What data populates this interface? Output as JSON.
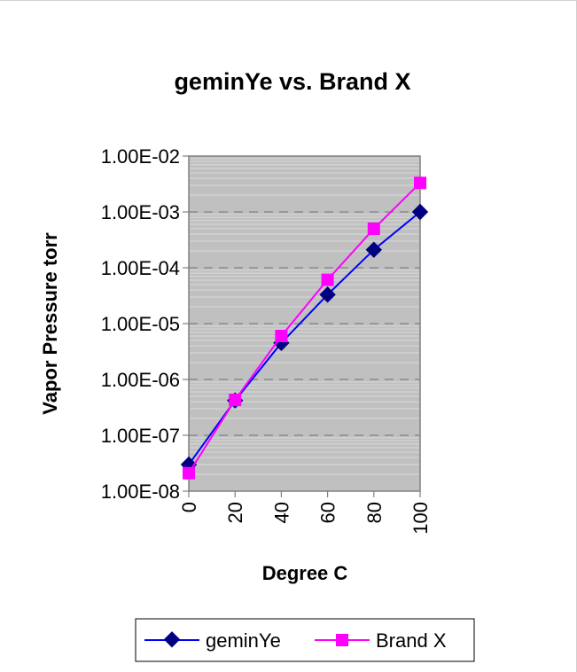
{
  "chart_data": {
    "type": "line",
    "title": "geminYe vs. Brand X",
    "xlabel": "Degree C",
    "ylabel": "Vapor Pressure torr",
    "x": [
      0,
      20,
      40,
      60,
      80,
      100
    ],
    "x_tick_labels": [
      "0",
      "20",
      "40",
      "60",
      "80",
      "100"
    ],
    "y_scale": "log",
    "ylim": [
      1e-08,
      0.01
    ],
    "y_tick_values": [
      1e-08,
      1e-07,
      1e-06,
      1e-05,
      0.0001,
      0.001,
      0.01
    ],
    "y_tick_labels": [
      "1.00E-08",
      "1.00E-07",
      "1.00E-06",
      "1.00E-05",
      "1.00E-04",
      "1.00E-03",
      "1.00E-02"
    ],
    "grid": "major dashed, minor light",
    "legend_position": "bottom",
    "plot_background": "#c0c0c0",
    "series": [
      {
        "name": "geminYe",
        "values": [
          3e-08,
          4.2e-07,
          4.5e-06,
          3.3e-05,
          0.00021,
          0.001
        ],
        "line_color": "#0000ff",
        "marker_color": "#000080",
        "marker": "diamond"
      },
      {
        "name": "Brand X",
        "values": [
          2.1e-08,
          4.3e-07,
          6e-06,
          6.1e-05,
          0.0005,
          0.0033
        ],
        "line_color": "#ff00ff",
        "marker_color": "#ff00ff",
        "marker": "square"
      }
    ]
  }
}
